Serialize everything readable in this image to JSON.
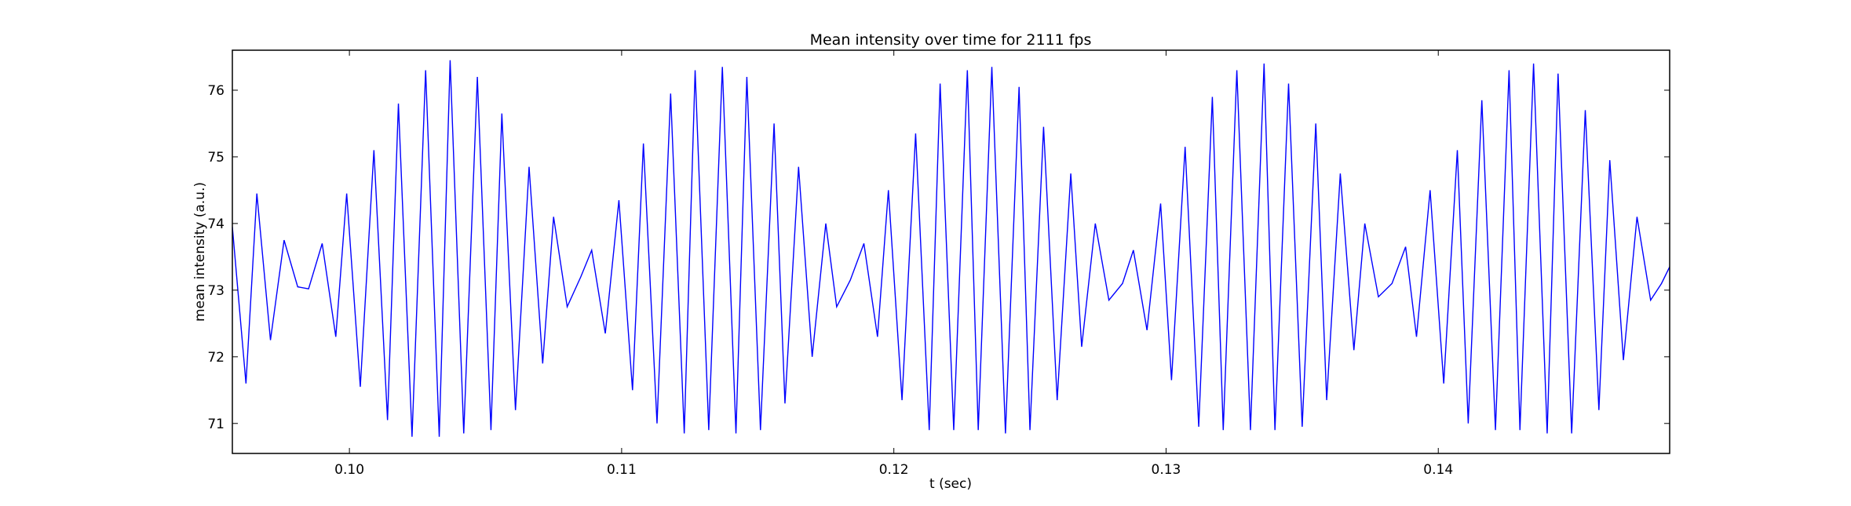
{
  "chart_data": {
    "type": "line",
    "title": "Mean intensity over time for 2111 fps",
    "xlabel": "t (sec)",
    "ylabel": "mean intensity (a.u.)",
    "xlim": [
      0.0957,
      0.1485
    ],
    "ylim": [
      70.55,
      76.6
    ],
    "xticks": [
      0.1,
      0.11,
      0.12,
      0.13,
      0.14
    ],
    "xtick_labels": [
      "0.10",
      "0.11",
      "0.12",
      "0.13",
      "0.14"
    ],
    "yticks": [
      71,
      72,
      73,
      74,
      75,
      76
    ],
    "ytick_labels": [
      "71",
      "72",
      "73",
      "74",
      "75",
      "76"
    ],
    "grid": false,
    "legend": "none",
    "series": [
      {
        "color": "#0000ff",
        "x": [
          0.0957,
          0.0962,
          0.0966,
          0.0971,
          0.0976,
          0.0981,
          0.0985,
          0.099,
          0.0995,
          0.0999,
          0.1004,
          0.1009,
          0.1014,
          0.1018,
          0.1023,
          0.1028,
          0.1033,
          0.1037,
          0.1042,
          0.1047,
          0.1052,
          0.1056,
          0.1061,
          0.1066,
          0.1071,
          0.1075,
          0.108,
          0.1085,
          0.1089,
          0.1094,
          0.1099,
          0.1104,
          0.1108,
          0.1113,
          0.1118,
          0.1123,
          0.1127,
          0.1132,
          0.1137,
          0.1142,
          0.1146,
          0.1151,
          0.1156,
          0.116,
          0.1165,
          0.117,
          0.1175,
          0.1179,
          0.1184,
          0.1189,
          0.1194,
          0.1198,
          0.1203,
          0.1208,
          0.1213,
          0.1217,
          0.1222,
          0.1227,
          0.1231,
          0.1236,
          0.1241,
          0.1246,
          0.125,
          0.1255,
          0.126,
          0.1265,
          0.1269,
          0.1274,
          0.1279,
          0.1284,
          0.1288,
          0.1293,
          0.1298,
          0.1302,
          0.1307,
          0.1312,
          0.1317,
          0.1321,
          0.1326,
          0.1331,
          0.1336,
          0.134,
          0.1345,
          0.135,
          0.1355,
          0.1359,
          0.1364,
          0.1369,
          0.1373,
          0.1378,
          0.1383,
          0.1388,
          0.1392,
          0.1397,
          0.1402,
          0.1407,
          0.1411,
          0.1416,
          0.1421,
          0.1426,
          0.143,
          0.1435,
          0.144,
          0.1444,
          0.1449,
          0.1454,
          0.1459,
          0.1463,
          0.1468,
          0.1473,
          0.1478,
          0.1482,
          0.1485
        ],
        "y": [
          73.95,
          71.6,
          74.45,
          72.25,
          73.75,
          73.05,
          73.02,
          73.7,
          72.3,
          74.45,
          71.55,
          75.1,
          71.05,
          75.8,
          70.8,
          76.3,
          70.8,
          76.45,
          70.85,
          76.2,
          70.9,
          75.65,
          71.2,
          74.85,
          71.9,
          74.1,
          72.75,
          73.2,
          73.6,
          72.35,
          74.35,
          71.5,
          75.2,
          71.0,
          75.95,
          70.85,
          76.3,
          70.9,
          76.35,
          70.85,
          76.2,
          70.9,
          75.5,
          71.3,
          74.85,
          72.0,
          74.0,
          72.75,
          73.15,
          73.7,
          72.3,
          74.5,
          71.35,
          75.35,
          70.9,
          76.1,
          70.9,
          76.3,
          70.9,
          76.35,
          70.85,
          76.05,
          70.9,
          75.45,
          71.35,
          74.75,
          72.15,
          74.0,
          72.85,
          73.1,
          73.6,
          72.4,
          74.3,
          71.65,
          75.15,
          70.95,
          75.9,
          70.9,
          76.3,
          70.9,
          76.4,
          70.9,
          76.1,
          70.95,
          75.5,
          71.35,
          74.75,
          72.1,
          74.0,
          72.9,
          73.1,
          73.65,
          72.3,
          74.5,
          71.6,
          75.1,
          71.0,
          75.85,
          70.9,
          76.3,
          70.9,
          76.4,
          70.85,
          76.25,
          70.85,
          75.7,
          71.2,
          74.95,
          71.95,
          74.1,
          72.85,
          73.1,
          73.35
        ]
      }
    ]
  }
}
